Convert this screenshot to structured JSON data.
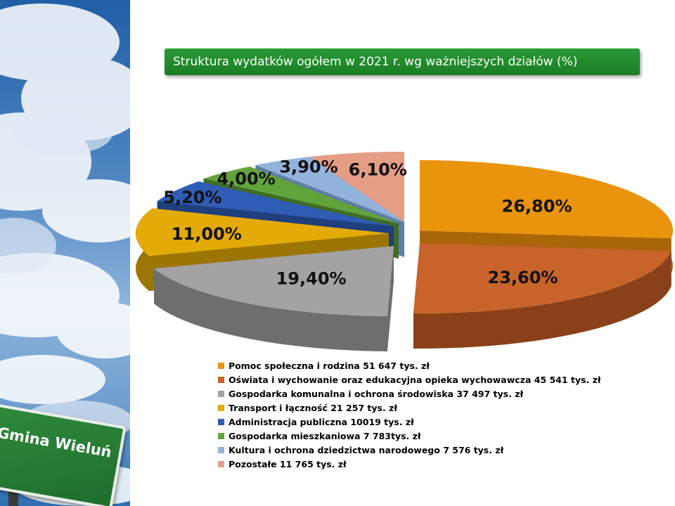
{
  "title": "Struktura wydatków ogółem w 2021 r. wg ważniejszych działów (%)",
  "sign_text": "Gmina Wieluń",
  "chart_data": {
    "type": "pie",
    "style": "3d-exploded",
    "slices": [
      {
        "label": "26,80%",
        "value": 26.8,
        "color": "#ea930c",
        "side": "#a9670a"
      },
      {
        "label": "23,60%",
        "value": 23.6,
        "color": "#c8642a",
        "side": "#8a4119"
      },
      {
        "label": "19,40%",
        "value": 19.4,
        "color": "#a3a3a3",
        "side": "#6e6e6e"
      },
      {
        "label": "11,00%",
        "value": 11.0,
        "color": "#e3aa08",
        "side": "#9c7604"
      },
      {
        "label": "5,20%",
        "value": 5.2,
        "color": "#2f5cb5",
        "side": "#1f3f7d"
      },
      {
        "label": "4,00%",
        "value": 4.0,
        "color": "#62a33c",
        "side": "#3f6d26"
      },
      {
        "label": "3,90%",
        "value": 3.9,
        "color": "#92b3dc",
        "side": "#5f7fa6"
      },
      {
        "label": "6,10%",
        "value": 6.1,
        "color": "#e59d86",
        "side": "#a66c59"
      }
    ],
    "legend": [
      {
        "text": "Pomoc społeczna i rodzina 51 647 tys. zł",
        "color": "#ea930c"
      },
      {
        "text": "Oświata i wychowanie oraz edukacyjna opieka wychowawcza 45 541 tys. zł",
        "color": "#c8642a"
      },
      {
        "text": "Gospodarka komunalna i ochrona środowiska 37 497 tys. zł",
        "color": "#a3a3a3"
      },
      {
        "text": "Transport i łączność 21 257 tys. zł",
        "color": "#e3aa08"
      },
      {
        "text": "Administracja publiczna 10019 tys. zł",
        "color": "#2f5cb5"
      },
      {
        "text": "Gospodarka mieszkaniowa 7 783tys. zł",
        "color": "#62a33c"
      },
      {
        "text": "Kultura i ochrona  dziedzictwa narodowego 7 576 tys. zł",
        "color": "#92b3dc"
      },
      {
        "text": "Pozostałe 11 765 tys. zł",
        "color": "#e59d86"
      }
    ]
  }
}
